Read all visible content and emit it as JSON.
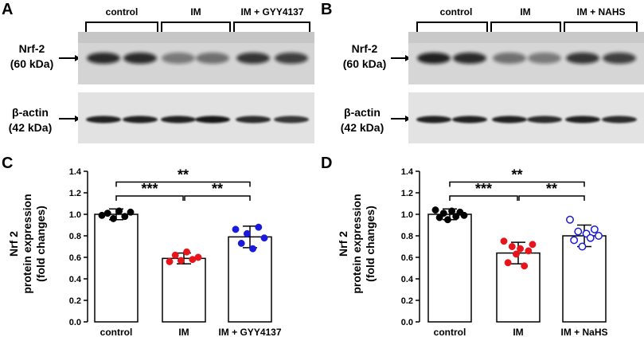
{
  "panels": {
    "A": {
      "letter": "A",
      "groups": [
        "control",
        "IM",
        "IM + GYY4137"
      ],
      "protein1_name": "Nrf-2",
      "protein1_kda": "(60 kDa)",
      "protein2_name": "β-actin",
      "protein2_kda": "(42 kDa)"
    },
    "B": {
      "letter": "B",
      "groups": [
        "control",
        "IM",
        "IM + NAHS"
      ],
      "protein1_name": "Nrf-2",
      "protein1_kda": "(60 kDa)",
      "protein2_name": "β-actin",
      "protein2_kda": "(42 kDa)"
    },
    "C": {
      "letter": "C"
    },
    "D": {
      "letter": "D"
    }
  },
  "colors": {
    "control": "#000000",
    "IM": "#e8141b",
    "treatment": "#1a1adc"
  },
  "chart_data": [
    {
      "type": "bar",
      "title": "",
      "ylabel_line1": "Nrf 2",
      "ylabel_line2": "protein expression",
      "ylabel_line3": "(fold changes)",
      "categories": [
        "control",
        "IM",
        "IM + GYY4137"
      ],
      "values": [
        1.0,
        0.59,
        0.79
      ],
      "errors": [
        0.05,
        0.05,
        0.1
      ],
      "ylim": [
        0,
        1.4
      ],
      "yticks": [
        "0.0",
        "0.2",
        "0.4",
        "0.6",
        "0.8",
        "1.0",
        "1.2",
        "1.4"
      ],
      "points": [
        [
          0.99,
          1.01,
          0.96,
          1.03,
          0.98,
          1.02
        ],
        [
          0.56,
          0.62,
          0.57,
          0.65,
          0.58,
          0.6
        ],
        [
          0.86,
          0.73,
          0.82,
          0.68,
          0.88,
          0.78
        ]
      ],
      "treatment_marker": "filled",
      "significance": [
        {
          "label": "**",
          "from": 0,
          "to": 2
        },
        {
          "label": "***",
          "from": 0,
          "to": 1
        },
        {
          "label": "**",
          "from": 1,
          "to": 2
        }
      ]
    },
    {
      "type": "bar",
      "title": "",
      "ylabel_line1": "Nrf 2",
      "ylabel_line2": "protein expression",
      "ylabel_line3": "(fold changes)",
      "categories": [
        "control",
        "IM",
        "IM + NaHS"
      ],
      "values": [
        1.0,
        0.64,
        0.8
      ],
      "errors": [
        0.05,
        0.1,
        0.1
      ],
      "ylim": [
        0,
        1.4
      ],
      "yticks": [
        "0.0",
        "0.2",
        "0.4",
        "0.6",
        "0.8",
        "1.0",
        "1.2",
        "1.4"
      ],
      "points": [
        [
          1.04,
          0.97,
          1.01,
          0.95,
          1.03,
          0.98,
          1.02,
          0.99
        ],
        [
          0.75,
          0.55,
          0.7,
          0.63,
          0.68,
          0.52,
          0.66,
          0.72
        ],
        [
          0.95,
          0.76,
          0.84,
          0.7,
          0.82,
          0.78,
          0.86,
          0.8
        ]
      ],
      "treatment_marker": "open",
      "significance": [
        {
          "label": "**",
          "from": 0,
          "to": 2
        },
        {
          "label": "***",
          "from": 0,
          "to": 1
        },
        {
          "label": "**",
          "from": 1,
          "to": 2
        }
      ]
    }
  ]
}
